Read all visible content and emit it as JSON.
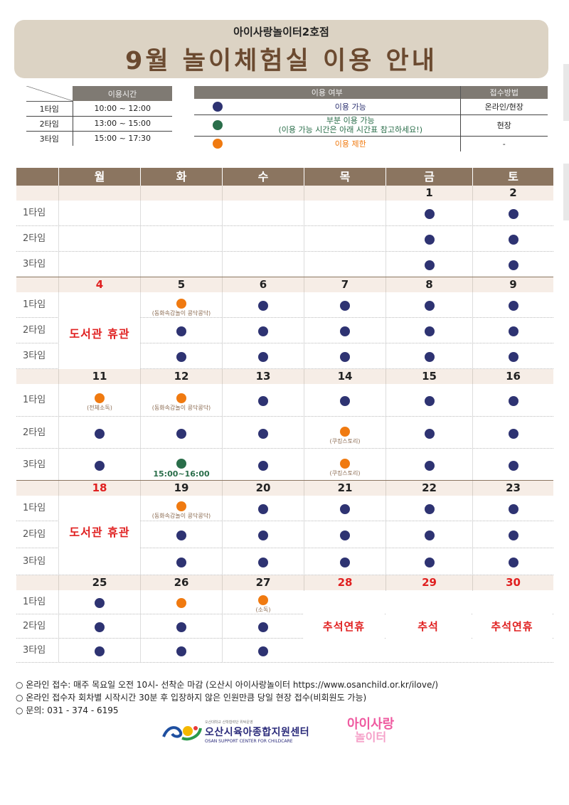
{
  "header": {
    "subtitle": "아이사랑놀이터2호점",
    "title": "9월 놀이체험실 이용 안내"
  },
  "time_table": {
    "header": "이용시간",
    "rows": [
      {
        "label": "1타임",
        "time": "10:00 ~ 12:00"
      },
      {
        "label": "2타임",
        "time": "13:00 ~ 15:00"
      },
      {
        "label": "3타임",
        "time": "15:00 ~ 17:30"
      }
    ]
  },
  "legend": {
    "header_usage": "이용 여부",
    "header_method": "접수방법",
    "rows": [
      {
        "color": "#2e3372",
        "text": "이용 가능",
        "text2": "",
        "method": "온라인/현장"
      },
      {
        "color": "#2a6e4a",
        "text": "부분 이용 가능",
        "text2": "(이용 가능 시간은 아래 시간표 참고하세요!)",
        "method": "현장"
      },
      {
        "color": "#f07a10",
        "text": "이용 제한",
        "text2": "",
        "method": "-"
      }
    ]
  },
  "calendar": {
    "days": [
      "월",
      "화",
      "수",
      "목",
      "금",
      "토"
    ],
    "time_labels": [
      "1타임",
      "2타임",
      "3타임"
    ],
    "weeks": [
      {
        "dates": [
          "",
          "",
          "",
          "",
          "1",
          "2"
        ]
      },
      {
        "dates": [
          "4",
          "5",
          "6",
          "7",
          "8",
          "9"
        ],
        "overlay": "도서관 휴관"
      },
      {
        "dates": [
          "11",
          "12",
          "13",
          "14",
          "15",
          "16"
        ]
      },
      {
        "dates": [
          "18",
          "19",
          "20",
          "21",
          "22",
          "23"
        ],
        "overlay": "도서관 휴관"
      },
      {
        "dates": [
          "25",
          "26",
          "27",
          "28",
          "29",
          "30"
        ]
      }
    ],
    "notes": {
      "dongwha": "(동화속감놀이 콩닥콩닥)",
      "disinfect_all": "(전체소독)",
      "cooking": "(쿠킹스토리)",
      "disinfect": "(소독)",
      "partial_time": "15:00~16:00"
    },
    "holidays": {
      "d28": "추석연휴",
      "d29": "추석",
      "d30": "추석연휴"
    }
  },
  "footer": {
    "lines": [
      "온라인 접수: 매주 목요일 오전 10시- 선착순 마감 (오산시 아이사랑놀이터 https://www.osanchild.or.kr/ilove/)",
      "온라인 접수자 회차별 시작시간 30분 후 입장하지 않은 인원만큼 당일 현장 접수(비회원도 가능)",
      "문의: 031 - 374 - 6195"
    ],
    "logo1_tiny": "오산대학교 산학협력단 위탁운영",
    "logo1_name": "오산시육아종합지원센터",
    "logo1_en": "OSAN SUPPORT CENTER FOR CHILDCARE",
    "logo2_l1": "아이사랑",
    "logo2_l2": "놀이터"
  }
}
